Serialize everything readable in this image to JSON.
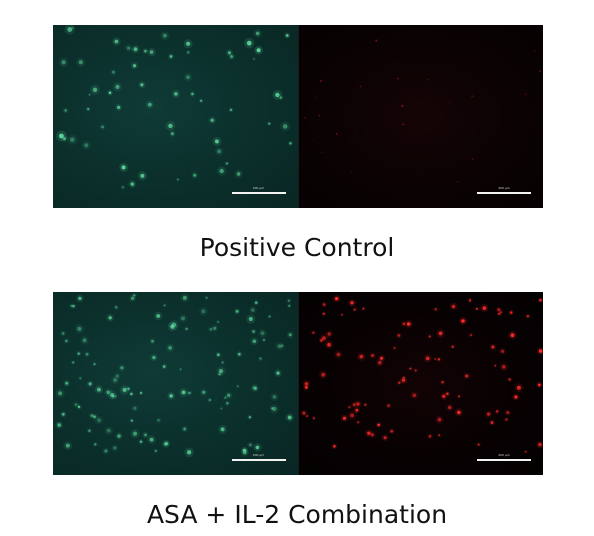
{
  "figure": {
    "panels": [
      {
        "caption": "Positive Control",
        "green_scale_label": "200 µm",
        "red_scale_label": "200 µm",
        "green_stain_color": "#5fe0a0",
        "red_stain_color": "#ff2a2a"
      },
      {
        "caption": "ASA + IL-2 Combination",
        "green_scale_label": "200 µm",
        "red_scale_label": "200 µm",
        "green_stain_color": "#5fe0a0",
        "red_stain_color": "#ff2a2a"
      }
    ]
  }
}
